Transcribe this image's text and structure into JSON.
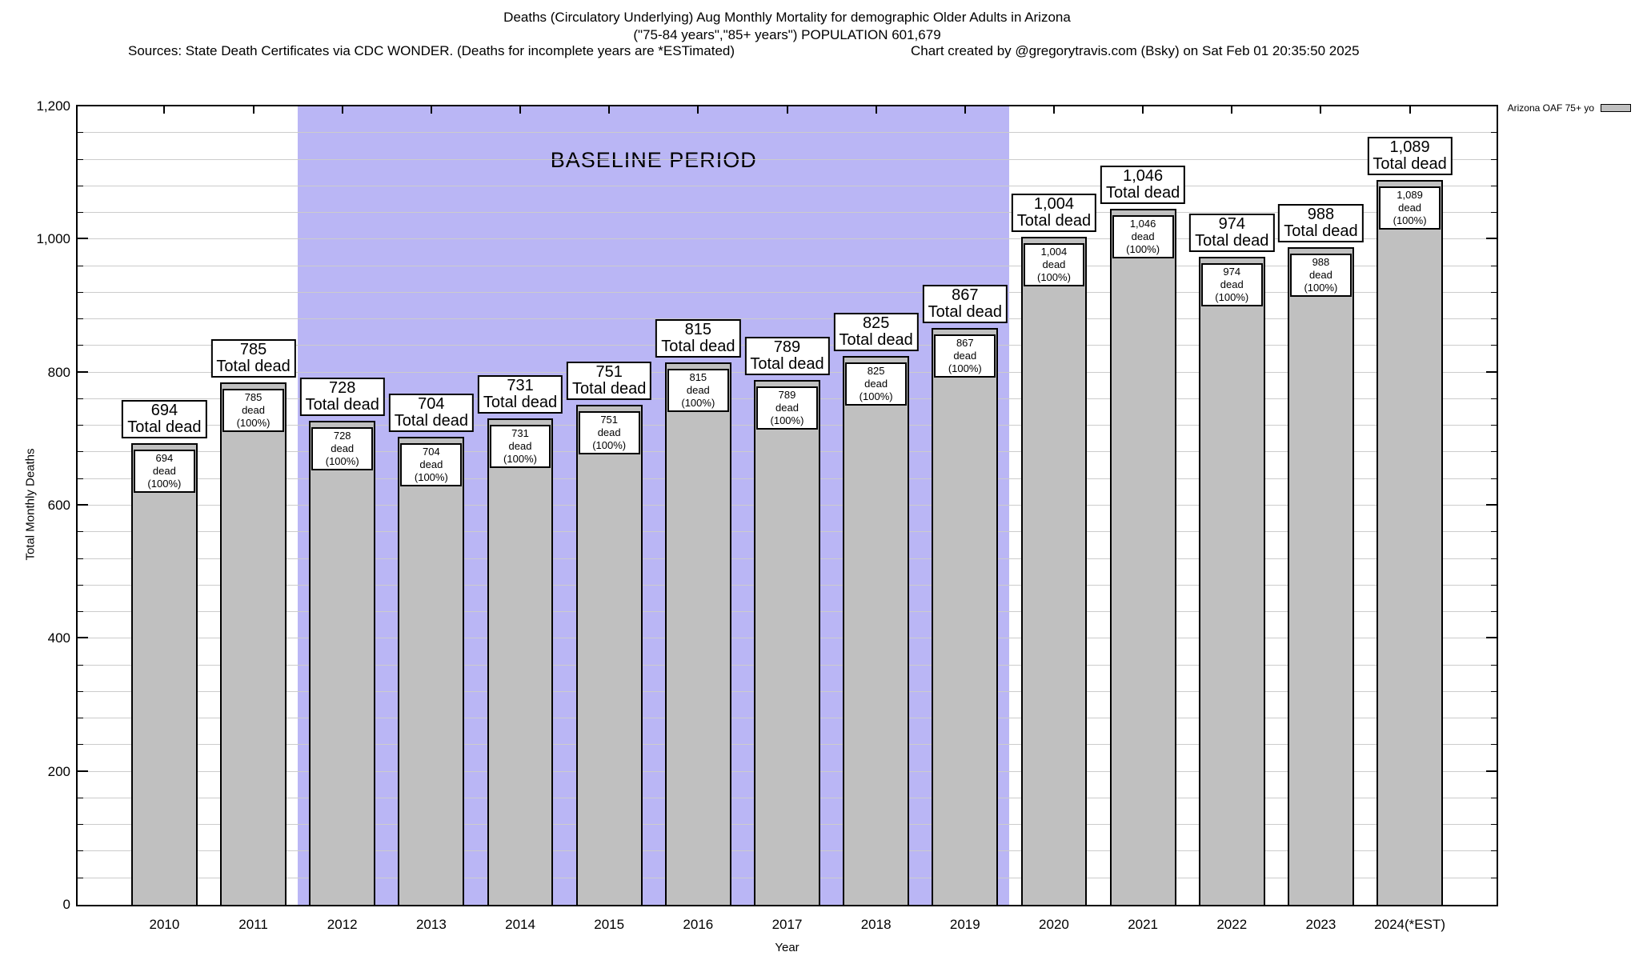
{
  "title": {
    "line1": "Deaths (Circulatory Underlying) Aug Monthly Mortality for demographic Older Adults in Arizona",
    "line2": "(\"75-84 years\",\"85+ years\") POPULATION 601,679",
    "sources_left": "Sources: State Death Certificates via CDC WONDER. (Deaths for incomplete years are *ESTimated)",
    "sources_right": "Chart created by @gregorytravis.com (Bsky) on Sat Feb 01 20:35:50 2025"
  },
  "legend": {
    "label": "Arizona OAF 75+ yo",
    "swatch_color": "#c0c0c0"
  },
  "baseline": {
    "label": "BASELINE PERIOD",
    "start_category": "2012",
    "end_category": "2019",
    "color": "#bab6f5"
  },
  "axes": {
    "ylabel": "Total Monthly Deaths",
    "xlabel": "Year",
    "ymin": 0,
    "ymax": 1200,
    "ytick_step": 200,
    "yminor_step": 40,
    "ytick_labels": [
      "0",
      "200",
      "400",
      "600",
      "800",
      "1,000",
      "1,200"
    ],
    "grid": "on"
  },
  "chart_data": {
    "type": "bar",
    "title": "Deaths (Circulatory Underlying) Aug Monthly Mortality for demographic Older Adults in Arizona",
    "xlabel": "Year",
    "ylabel": "Total Monthly Deaths",
    "ylim": [
      0,
      1200
    ],
    "legend_position": "top-right-outside",
    "bar_color": "#c0c0c0",
    "categories": [
      "2010",
      "2011",
      "2012",
      "2013",
      "2014",
      "2015",
      "2016",
      "2017",
      "2018",
      "2019",
      "2020",
      "2021",
      "2022",
      "2023",
      "2024(*EST)"
    ],
    "values": [
      694,
      785,
      728,
      704,
      731,
      751,
      815,
      789,
      825,
      867,
      1004,
      1046,
      974,
      988,
      1089
    ],
    "value_labels": [
      "694",
      "785",
      "728",
      "704",
      "731",
      "751",
      "815",
      "789",
      "825",
      "867",
      "1,004",
      "1,046",
      "974",
      "988",
      "1,089"
    ],
    "top_label_suffix": "Total dead",
    "inner_label_suffix": "dead (100%)",
    "baseline_period_categories": [
      "2012",
      "2013",
      "2014",
      "2015",
      "2016",
      "2017",
      "2018",
      "2019"
    ]
  }
}
